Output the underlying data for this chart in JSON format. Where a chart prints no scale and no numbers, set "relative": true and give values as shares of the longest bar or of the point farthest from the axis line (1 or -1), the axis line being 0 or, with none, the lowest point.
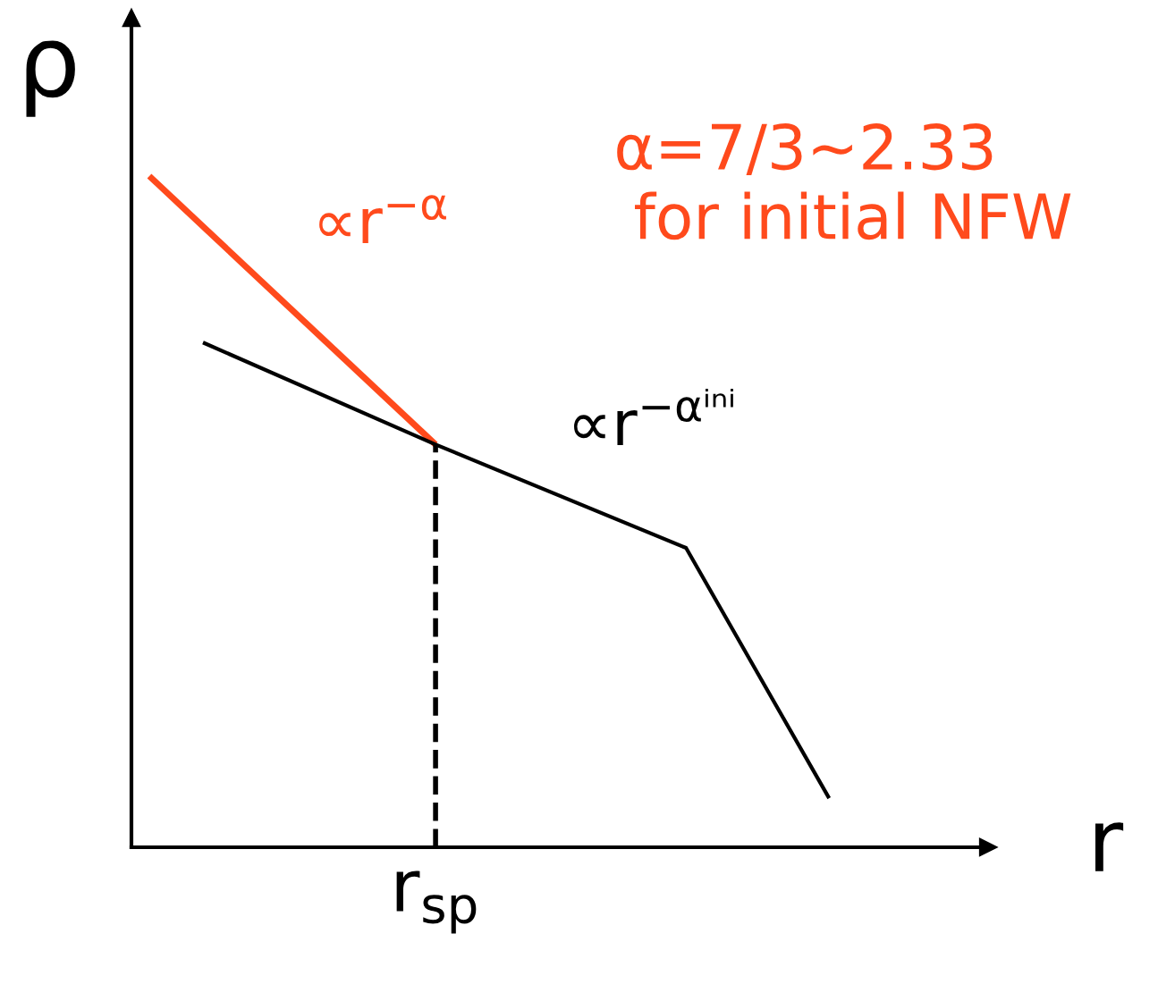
{
  "chart_data": {
    "type": "line",
    "relative": true,
    "xlabel": "r",
    "ylabel": "ρ",
    "marker": "none",
    "line_style": "solid",
    "categories": [
      null,
      null,
      null,
      null,
      null,
      null,
      null,
      null,
      null,
      null,
      null,
      null,
      null,
      null,
      null,
      null,
      null,
      null,
      null,
      null,
      null,
      null,
      null,
      null,
      null,
      null,
      null,
      null,
      null,
      null,
      null,
      null,
      null,
      null,
      null,
      null,
      null,
      null,
      null,
      null,
      null,
      null,
      null,
      null,
      null,
      null,
      null
    ],
    "series": [
      {
        "color": "#ff4a1c",
        "values": [
          1.0,
          null,
          null,
          null,
          null,
          null,
          null,
          null,
          null,
          null,
          null,
          null,
          null,
          null,
          null,
          null,
          0.6,
          null,
          null,
          null,
          null,
          null,
          null,
          null,
          null,
          null,
          null,
          null,
          null,
          null,
          null,
          null,
          null,
          null,
          null,
          null,
          null,
          null,
          null,
          null,
          null,
          null,
          null,
          null,
          null,
          null,
          null
        ]
      },
      {
        "color": "#000000",
        "values": [
          null,
          null,
          null,
          0.752,
          null,
          null,
          null,
          null,
          null,
          null,
          null,
          null,
          null,
          null,
          null,
          null,
          0.6,
          null,
          null,
          null,
          null,
          null,
          null,
          null,
          null,
          null,
          null,
          null,
          null,
          null,
          0.446,
          null,
          null,
          null,
          null,
          null,
          null,
          null,
          0.073,
          null,
          null,
          null,
          null,
          null,
          null,
          null,
          null
        ]
      }
    ],
    "annotations": [
      "∝r$^{−α}$",
      "∝r$^{−αⁱⁿⁱ}$",
      "α=7/3~2.33\n for initial NFW",
      "r$_{sp}$"
    ]
  }
}
